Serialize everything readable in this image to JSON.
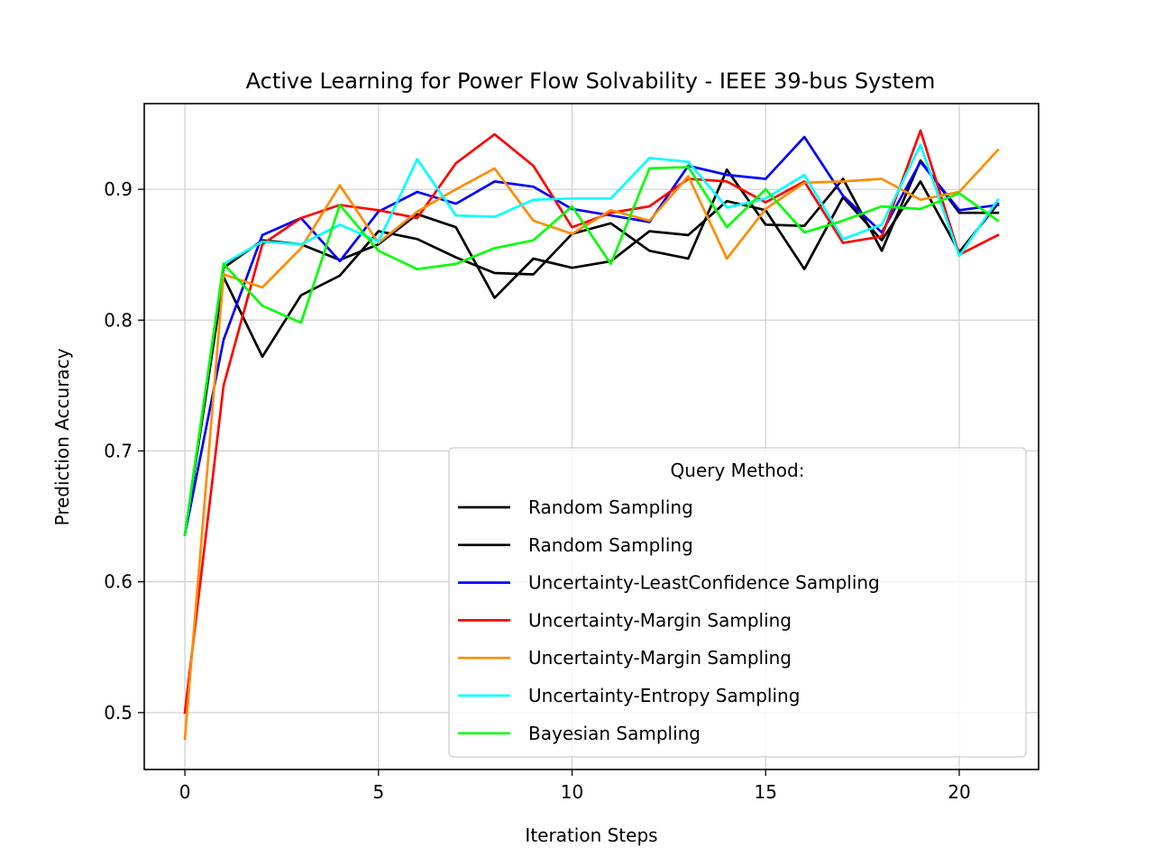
{
  "chart_data": {
    "type": "line",
    "title": "Active Learning for Power Flow Solvability - IEEE 39-bus System",
    "xlabel": "Iteration Steps",
    "ylabel": "Prediction Accuracy",
    "xlim": [
      -1.05,
      22.05
    ],
    "ylim": [
      0.4565,
      0.9655
    ],
    "xticks": [
      0,
      5,
      10,
      15,
      20
    ],
    "yticks": [
      0.5,
      0.6,
      0.7,
      0.8,
      0.9
    ],
    "xtick_labels": [
      "0",
      "5",
      "10",
      "15",
      "20"
    ],
    "ytick_labels": [
      "0.5",
      "0.6",
      "0.7",
      "0.8",
      "0.9"
    ],
    "grid": true,
    "legend": {
      "title": "Query Method:",
      "position": "lower right"
    },
    "x": [
      0,
      1,
      2,
      3,
      4,
      5,
      6,
      7,
      8,
      9,
      10,
      11,
      12,
      13,
      14,
      15,
      16,
      17,
      18,
      19,
      20,
      21
    ],
    "series": [
      {
        "name": "Random Sampling",
        "color": "#000000",
        "values": [
          0.636,
          0.833,
          0.772,
          0.819,
          0.834,
          0.868,
          0.862,
          0.848,
          0.836,
          0.835,
          0.866,
          0.874,
          0.853,
          0.847,
          0.915,
          0.873,
          0.872,
          0.908,
          0.853,
          0.922,
          0.882,
          0.882
        ]
      },
      {
        "name": "Random Sampling",
        "color": "#000000",
        "values": [
          0.636,
          0.84,
          0.861,
          0.858,
          0.846,
          0.858,
          0.881,
          0.871,
          0.817,
          0.847,
          0.84,
          0.845,
          0.868,
          0.865,
          0.891,
          0.884,
          0.839,
          0.894,
          0.861,
          0.906,
          0.852,
          0.889
        ]
      },
      {
        "name": "Uncertainty-LeastConfidence Sampling",
        "color": "#0000ff",
        "values": [
          0.636,
          0.785,
          0.865,
          0.878,
          0.845,
          0.883,
          0.898,
          0.889,
          0.906,
          0.902,
          0.885,
          0.88,
          0.875,
          0.918,
          0.911,
          0.908,
          0.94,
          0.895,
          0.867,
          0.921,
          0.884,
          0.888
        ]
      },
      {
        "name": "Uncertainty-Margin Sampling",
        "color": "#ff0000",
        "values": [
          0.5,
          0.75,
          0.858,
          0.878,
          0.888,
          0.884,
          0.878,
          0.92,
          0.942,
          0.918,
          0.871,
          0.882,
          0.887,
          0.908,
          0.906,
          0.89,
          0.906,
          0.859,
          0.864,
          0.945,
          0.85,
          0.865
        ]
      },
      {
        "name": "Uncertainty-Margin Sampling",
        "color": "#ff8c00",
        "values": [
          0.48,
          0.835,
          0.825,
          0.855,
          0.903,
          0.859,
          0.883,
          0.9,
          0.916,
          0.876,
          0.866,
          0.884,
          0.876,
          0.91,
          0.847,
          0.885,
          0.905,
          0.906,
          0.908,
          0.892,
          0.898,
          0.93
        ]
      },
      {
        "name": "Uncertainty-Entropy Sampling",
        "color": "#00ffff",
        "values": [
          0.636,
          0.843,
          0.86,
          0.858,
          0.873,
          0.86,
          0.923,
          0.88,
          0.879,
          0.892,
          0.893,
          0.893,
          0.924,
          0.921,
          0.886,
          0.893,
          0.911,
          0.862,
          0.873,
          0.934,
          0.849,
          0.892
        ]
      },
      {
        "name": "Bayesian Sampling",
        "color": "#00ff00",
        "values": [
          0.636,
          0.843,
          0.811,
          0.798,
          0.888,
          0.853,
          0.839,
          0.843,
          0.855,
          0.861,
          0.887,
          0.843,
          0.916,
          0.917,
          0.871,
          0.9,
          0.867,
          0.876,
          0.887,
          0.885,
          0.897,
          0.876
        ]
      }
    ]
  }
}
